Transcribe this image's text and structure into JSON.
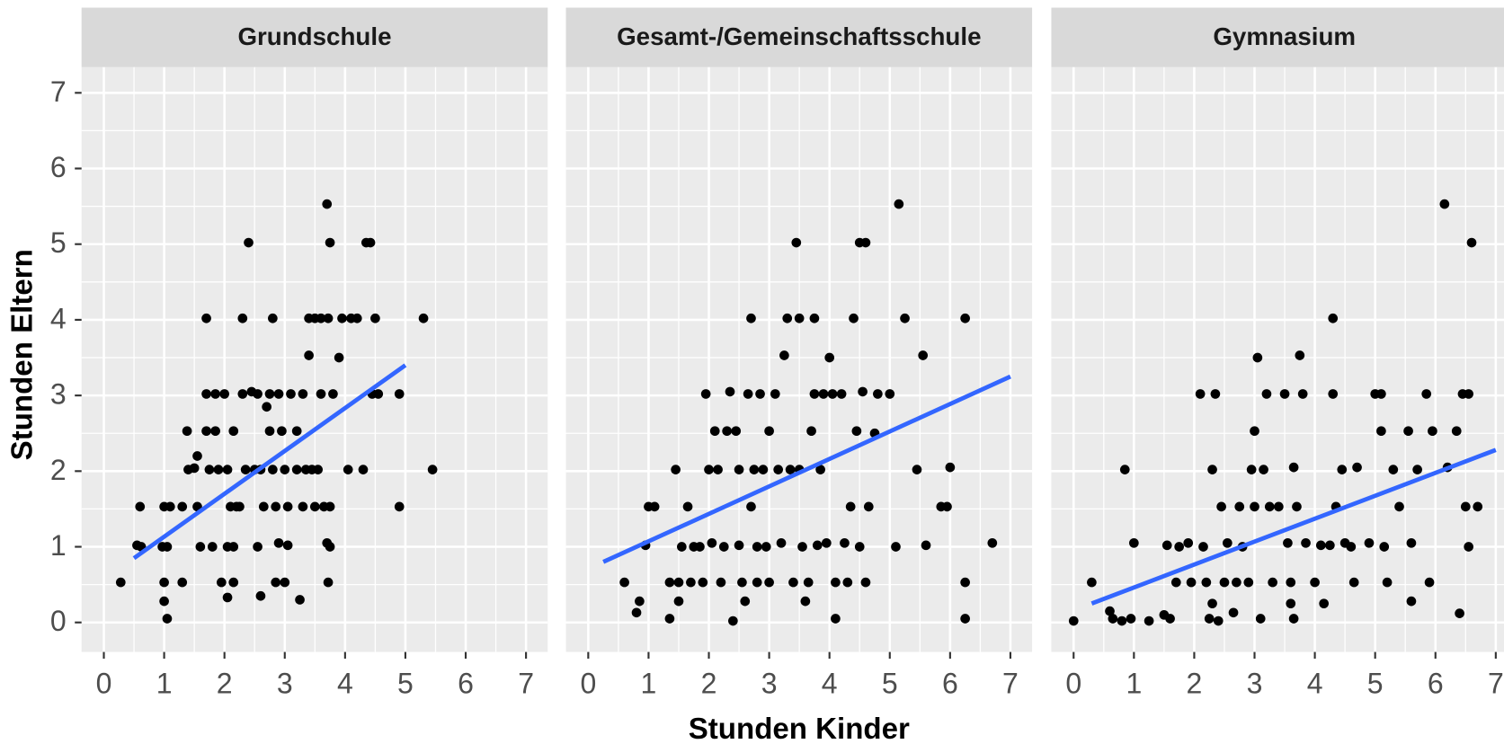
{
  "axis_labels": {
    "x": "Stunden Kinder",
    "y": "Stunden Eltern"
  },
  "chart_data": [
    {
      "type": "scatter",
      "title": "Grundschule",
      "color": "#000000",
      "x": [
        0.28,
        0.55,
        0.6,
        0.62,
        0.97,
        1.0,
        1.05,
        1.0,
        1.0,
        1.05,
        1.1,
        1.3,
        1.3,
        1.38,
        1.4,
        1.5,
        1.55,
        1.6,
        1.55,
        1.7,
        1.7,
        1.7,
        1.75,
        1.8,
        1.85,
        1.85,
        1.9,
        1.95,
        2.0,
        2.05,
        2.05,
        2.05,
        2.1,
        2.15,
        2.2,
        2.15,
        2.15,
        2.25,
        2.3,
        2.3,
        2.35,
        2.4,
        2.45,
        2.5,
        2.55,
        2.55,
        2.6,
        2.6,
        2.65,
        2.7,
        2.75,
        2.75,
        2.8,
        2.8,
        2.85,
        2.85,
        2.9,
        2.9,
        2.95,
        3.0,
        3.0,
        3.05,
        3.05,
        3.1,
        3.2,
        3.2,
        3.25,
        3.3,
        3.3,
        3.35,
        3.4,
        3.4,
        3.45,
        3.5,
        3.5,
        3.55,
        3.6,
        3.6,
        3.65,
        3.7,
        3.7,
        3.72,
        3.72,
        3.75,
        3.75,
        3.75,
        3.8,
        3.9,
        3.95,
        4.05,
        4.1,
        4.2,
        4.3,
        4.35,
        4.42,
        4.45,
        4.5,
        4.55,
        4.9,
        4.9,
        5.3,
        5.45
      ],
      "y": [
        0.53,
        1.02,
        1.53,
        1.0,
        1.0,
        1.53,
        1.0,
        0.53,
        0.28,
        0.05,
        1.53,
        0.53,
        1.53,
        2.53,
        2.02,
        2.04,
        2.2,
        1.0,
        1.53,
        4.02,
        3.02,
        2.53,
        2.02,
        1.0,
        3.02,
        2.53,
        2.02,
        0.53,
        3.02,
        2.02,
        1.0,
        0.33,
        1.53,
        2.53,
        1.53,
        1.0,
        0.53,
        1.53,
        4.02,
        3.02,
        2.02,
        5.02,
        3.05,
        2.02,
        1.0,
        3.02,
        0.35,
        2.02,
        1.53,
        2.85,
        3.02,
        2.53,
        4.02,
        2.02,
        1.53,
        0.53,
        1.05,
        3.02,
        2.53,
        0.53,
        2.02,
        1.02,
        1.53,
        3.02,
        2.53,
        2.02,
        0.3,
        1.53,
        3.02,
        2.02,
        4.02,
        3.53,
        2.02,
        4.02,
        1.53,
        2.02,
        3.02,
        4.02,
        1.53,
        1.05,
        5.53,
        4.02,
        0.53,
        5.02,
        1.53,
        1.0,
        3.02,
        3.5,
        4.02,
        2.02,
        4.02,
        4.02,
        2.02,
        5.02,
        5.02,
        3.02,
        4.02,
        3.02,
        3.02,
        1.53,
        4.02,
        2.02
      ],
      "trend": {
        "x": [
          0.5,
          5.0
        ],
        "y": [
          0.85,
          3.4
        ],
        "color": "#3366ff"
      },
      "xlim": [
        -0.37,
        7.36
      ],
      "ylim": [
        -0.39,
        7.34
      ],
      "xticks": [
        0,
        1,
        2,
        3,
        4,
        5,
        6,
        7
      ],
      "yticks": [
        0,
        1,
        2,
        3,
        4,
        5,
        6,
        7
      ],
      "minor_xticks": [
        0.5,
        1.5,
        2.5,
        3.5,
        4.5,
        5.5,
        6.5
      ],
      "minor_yticks": [
        0.5,
        1.5,
        2.5,
        3.5,
        4.5,
        5.5,
        6.5
      ],
      "grid": true
    },
    {
      "type": "scatter",
      "title": "Gesamt-/Gemeinschaftsschule",
      "color": "#000000",
      "x": [
        0.6,
        0.8,
        0.85,
        0.95,
        1.0,
        1.1,
        1.35,
        1.35,
        1.45,
        1.5,
        1.5,
        1.55,
        1.65,
        1.7,
        1.75,
        1.85,
        1.9,
        1.95,
        2.0,
        2.05,
        2.1,
        2.15,
        2.2,
        2.25,
        2.3,
        2.35,
        2.4,
        2.45,
        2.5,
        2.5,
        2.55,
        2.6,
        2.65,
        2.7,
        2.7,
        2.75,
        2.8,
        2.8,
        2.85,
        2.9,
        2.95,
        3.0,
        3.0,
        3.1,
        3.15,
        3.2,
        3.25,
        3.3,
        3.35,
        3.4,
        3.45,
        3.5,
        3.5,
        3.55,
        3.6,
        3.65,
        3.7,
        3.75,
        3.75,
        3.8,
        3.85,
        3.9,
        3.95,
        4.0,
        4.05,
        4.1,
        4.1,
        4.2,
        4.25,
        4.3,
        4.35,
        4.4,
        4.45,
        4.5,
        4.5,
        4.55,
        4.6,
        4.6,
        4.65,
        4.75,
        4.8,
        5.0,
        5.1,
        5.15,
        5.25,
        5.45,
        5.55,
        5.6,
        5.85,
        5.95,
        6.0,
        6.25,
        6.25,
        6.25,
        6.7
      ],
      "y": [
        0.53,
        0.13,
        0.28,
        1.02,
        1.53,
        1.53,
        0.53,
        0.05,
        2.02,
        0.53,
        0.28,
        1.0,
        1.53,
        0.53,
        1.0,
        1.0,
        0.53,
        3.02,
        2.02,
        1.05,
        2.53,
        2.02,
        0.53,
        1.0,
        2.53,
        3.05,
        0.02,
        2.53,
        2.02,
        1.02,
        0.53,
        0.28,
        3.02,
        4.02,
        1.53,
        2.02,
        0.53,
        1.0,
        3.02,
        2.02,
        1.0,
        0.53,
        2.53,
        3.02,
        2.02,
        1.05,
        3.53,
        4.02,
        2.02,
        0.53,
        5.02,
        4.02,
        2.02,
        1.0,
        0.28,
        0.53,
        2.53,
        4.02,
        3.02,
        1.02,
        2.02,
        3.02,
        1.05,
        3.5,
        3.02,
        0.05,
        0.53,
        3.02,
        1.05,
        0.53,
        1.53,
        4.02,
        2.53,
        1.0,
        5.02,
        3.05,
        0.53,
        5.02,
        1.53,
        2.5,
        3.02,
        3.02,
        1.0,
        5.53,
        4.02,
        2.02,
        3.53,
        1.02,
        1.53,
        1.53,
        2.05,
        4.02,
        0.53,
        0.05,
        1.05
      ],
      "trend": {
        "x": [
          0.25,
          7.0
        ],
        "y": [
          0.8,
          3.25
        ],
        "color": "#3366ff"
      },
      "xlim": [
        -0.37,
        7.36
      ],
      "ylim": [
        -0.39,
        7.34
      ],
      "xticks": [
        0,
        1,
        2,
        3,
        4,
        5,
        6,
        7
      ],
      "yticks": [
        0,
        1,
        2,
        3,
        4,
        5,
        6,
        7
      ],
      "minor_xticks": [
        0.5,
        1.5,
        2.5,
        3.5,
        4.5,
        5.5,
        6.5
      ],
      "minor_yticks": [
        0.5,
        1.5,
        2.5,
        3.5,
        4.5,
        5.5,
        6.5
      ],
      "grid": true
    },
    {
      "type": "scatter",
      "title": "Gymnasium",
      "color": "#000000",
      "x": [
        0.0,
        0.3,
        0.6,
        0.65,
        0.8,
        0.85,
        0.95,
        1.0,
        1.25,
        1.5,
        1.55,
        1.6,
        1.7,
        1.75,
        1.9,
        1.95,
        2.1,
        2.15,
        2.2,
        2.25,
        2.3,
        2.3,
        2.35,
        2.4,
        2.45,
        2.5,
        2.55,
        2.65,
        2.7,
        2.75,
        2.8,
        2.9,
        2.95,
        3.0,
        3.0,
        3.05,
        3.1,
        3.15,
        3.2,
        3.25,
        3.3,
        3.4,
        3.5,
        3.55,
        3.6,
        3.6,
        3.65,
        3.65,
        3.7,
        3.75,
        3.8,
        3.85,
        4.0,
        4.1,
        4.15,
        4.25,
        4.3,
        4.3,
        4.35,
        4.45,
        4.5,
        4.6,
        4.65,
        4.7,
        4.9,
        5.0,
        5.1,
        5.1,
        5.15,
        5.2,
        5.3,
        5.4,
        5.55,
        5.6,
        5.6,
        5.7,
        5.85,
        5.9,
        5.95,
        6.15,
        6.2,
        6.35,
        6.4,
        6.45,
        6.5,
        6.55,
        6.6,
        6.7,
        6.55
      ],
      "y": [
        0.02,
        0.53,
        0.15,
        0.05,
        0.02,
        2.02,
        0.05,
        1.05,
        0.02,
        0.1,
        1.02,
        0.05,
        0.53,
        1.0,
        1.05,
        0.53,
        3.02,
        1.0,
        0.53,
        0.05,
        0.25,
        2.02,
        3.02,
        0.02,
        1.53,
        0.53,
        1.05,
        0.13,
        0.53,
        1.53,
        1.0,
        0.53,
        2.02,
        2.53,
        1.53,
        3.5,
        0.05,
        2.02,
        3.02,
        1.53,
        0.53,
        1.53,
        3.02,
        1.05,
        0.53,
        0.25,
        2.05,
        0.05,
        1.53,
        3.53,
        3.02,
        1.05,
        0.53,
        1.02,
        0.25,
        1.02,
        3.02,
        4.02,
        1.53,
        2.02,
        1.05,
        1.0,
        0.53,
        2.05,
        1.05,
        3.02,
        2.53,
        3.02,
        1.0,
        0.53,
        2.02,
        1.53,
        2.53,
        1.05,
        0.28,
        2.02,
        3.02,
        0.53,
        2.53,
        5.53,
        2.05,
        2.53,
        0.12,
        3.02,
        1.53,
        1.0,
        5.02,
        1.53,
        3.02
      ],
      "trend": {
        "x": [
          0.3,
          7.0
        ],
        "y": [
          0.25,
          2.28
        ],
        "color": "#3366ff"
      },
      "xlim": [
        -0.37,
        7.36
      ],
      "ylim": [
        -0.39,
        7.34
      ],
      "xticks": [
        0,
        1,
        2,
        3,
        4,
        5,
        6,
        7
      ],
      "yticks": [
        0,
        1,
        2,
        3,
        4,
        5,
        6,
        7
      ],
      "minor_xticks": [
        0.5,
        1.5,
        2.5,
        3.5,
        4.5,
        5.5,
        6.5
      ],
      "minor_yticks": [
        0.5,
        1.5,
        2.5,
        3.5,
        4.5,
        5.5,
        6.5
      ],
      "grid": true
    }
  ]
}
